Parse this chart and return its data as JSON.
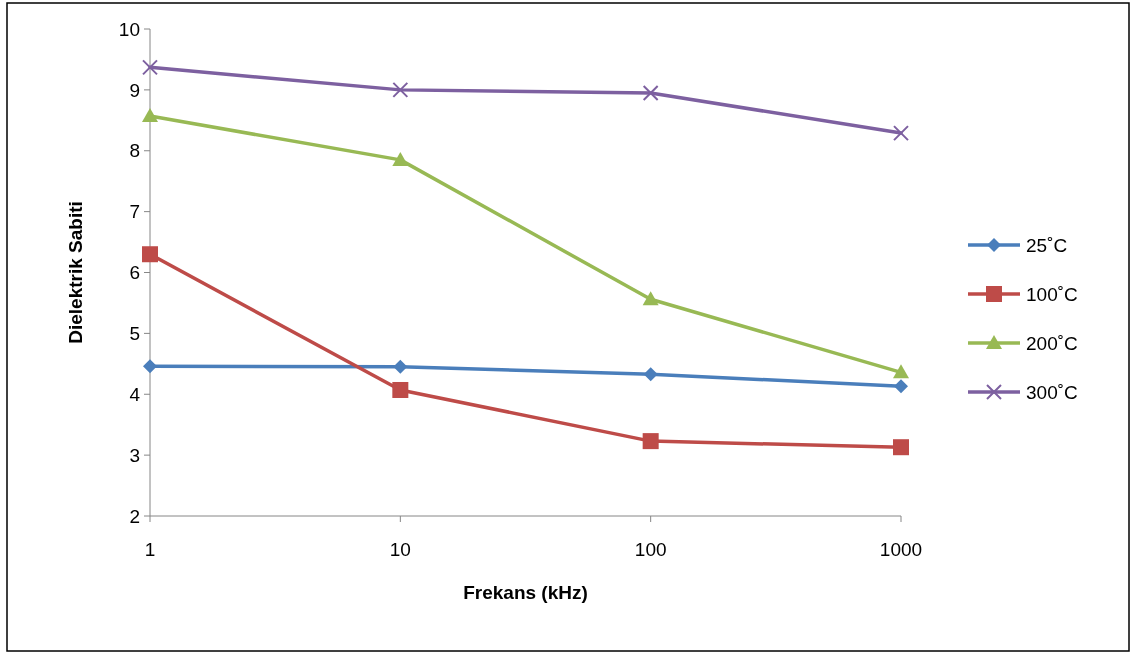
{
  "chart_data": {
    "type": "line",
    "xlabel": "Frekans (kHz)",
    "ylabel": "Dielektrik Sabiti",
    "x": [
      1,
      10,
      100,
      1000
    ],
    "log": "x",
    "xlim": [
      1,
      1000
    ],
    "xticks": [
      1,
      10,
      100,
      1000
    ],
    "ylim": [
      2,
      10
    ],
    "yticks": [
      2,
      3,
      4,
      5,
      6,
      7,
      8,
      9,
      10
    ],
    "grid": false,
    "legend": "right",
    "line_style": "solid",
    "series": [
      {
        "name": "25˚C",
        "color": "#4a7ebb",
        "marker": "diamond",
        "values": [
          4.46,
          4.45,
          4.33,
          4.13
        ]
      },
      {
        "name": "100˚C",
        "color": "#be4b48",
        "marker": "square",
        "values": [
          6.3,
          4.07,
          3.23,
          3.13
        ]
      },
      {
        "name": "200˚C",
        "color": "#98b954",
        "marker": "triangle",
        "values": [
          8.57,
          7.85,
          5.56,
          4.36
        ]
      },
      {
        "name": "300˚C",
        "color": "#7d60a0",
        "marker": "cross",
        "values": [
          9.37,
          9.0,
          8.95,
          8.29
        ]
      }
    ]
  }
}
